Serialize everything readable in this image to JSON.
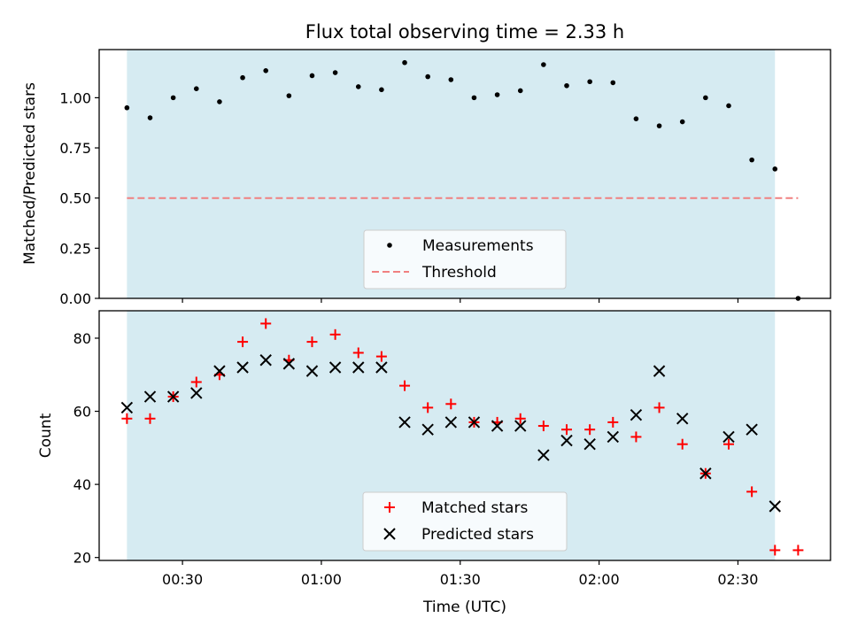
{
  "title": "Flux total observing time = 2.33 h",
  "xlabel": "Time (UTC)",
  "chart_data": [
    {
      "type": "scatter",
      "panel": "top",
      "ylabel": "Matched/Predicted stars",
      "ylim": [
        0,
        1.24
      ],
      "yticks": [
        0.0,
        0.25,
        0.5,
        0.75,
        1.0
      ],
      "ytick_labels": [
        "0.00",
        "0.25",
        "0.50",
        "0.75",
        "1.00"
      ],
      "xlim": [
        "00:12",
        "02:50"
      ],
      "xticks": [
        "00:30",
        "01:00",
        "01:30",
        "02:00",
        "02:30"
      ],
      "observing_window": [
        "00:18",
        "02:38"
      ],
      "grid": false,
      "legend_position": "lower center",
      "series": [
        {
          "name": "Measurements",
          "marker": "dot",
          "color": "#000000",
          "x": [
            "00:18",
            "00:23",
            "00:28",
            "00:33",
            "00:38",
            "00:43",
            "00:48",
            "00:53",
            "00:58",
            "01:03",
            "01:08",
            "01:13",
            "01:18",
            "01:23",
            "01:28",
            "01:33",
            "01:38",
            "01:43",
            "01:48",
            "01:53",
            "01:58",
            "02:03",
            "02:08",
            "02:13",
            "02:18",
            "02:23",
            "02:28",
            "02:33",
            "02:38",
            "02:43"
          ],
          "y": [
            0.95,
            0.9,
            1.0,
            1.045,
            0.98,
            1.1,
            1.135,
            1.01,
            1.11,
            1.125,
            1.055,
            1.04,
            1.175,
            1.105,
            1.09,
            1.0,
            1.015,
            1.035,
            1.165,
            1.06,
            1.08,
            1.075,
            0.895,
            0.86,
            0.88,
            1.0,
            0.96,
            0.69,
            0.645,
            0.0
          ]
        },
        {
          "name": "Threshold",
          "line": "dashed",
          "color": "#f08080",
          "x": [
            "00:18",
            "02:43"
          ],
          "y": [
            0.5,
            0.5
          ]
        }
      ]
    },
    {
      "type": "scatter",
      "panel": "bottom",
      "ylabel": "Count",
      "ylim": [
        19.2,
        87.5
      ],
      "yticks": [
        20,
        40,
        60,
        80
      ],
      "ytick_labels": [
        "20",
        "40",
        "60",
        "80"
      ],
      "xlim": [
        "00:12",
        "02:50"
      ],
      "xticks": [
        "00:30",
        "01:00",
        "01:30",
        "02:00",
        "02:30"
      ],
      "observing_window": [
        "00:18",
        "02:38"
      ],
      "grid": false,
      "legend_position": "lower center",
      "series": [
        {
          "name": "Matched stars",
          "marker": "plus",
          "color": "#ff0000",
          "x": [
            "00:18",
            "00:23",
            "00:28",
            "00:33",
            "00:38",
            "00:43",
            "00:48",
            "00:53",
            "00:58",
            "01:03",
            "01:08",
            "01:13",
            "01:18",
            "01:23",
            "01:28",
            "01:33",
            "01:38",
            "01:43",
            "01:48",
            "01:53",
            "01:58",
            "02:03",
            "02:08",
            "02:13",
            "02:18",
            "02:23",
            "02:28",
            "02:33",
            "02:38",
            "02:43"
          ],
          "y": [
            58,
            58,
            64,
            68,
            70,
            79,
            84,
            74,
            79,
            81,
            76,
            75,
            67,
            61,
            62,
            57,
            57,
            58,
            56,
            55,
            55,
            57,
            53,
            61,
            51,
            43,
            51,
            38,
            22,
            22
          ]
        },
        {
          "name": "Predicted stars",
          "marker": "x",
          "color": "#000000",
          "x": [
            "00:18",
            "00:23",
            "00:28",
            "00:33",
            "00:38",
            "00:43",
            "00:48",
            "00:53",
            "00:58",
            "01:03",
            "01:08",
            "01:13",
            "01:18",
            "01:23",
            "01:28",
            "01:33",
            "01:38",
            "01:43",
            "01:48",
            "01:53",
            "01:58",
            "02:03",
            "02:08",
            "02:13",
            "02:18",
            "02:23",
            "02:28",
            "02:33",
            "02:38"
          ],
          "y": [
            61,
            64,
            64,
            65,
            71,
            72,
            74,
            73,
            71,
            72,
            72,
            72,
            57,
            55,
            57,
            57,
            56,
            56,
            48,
            52,
            51,
            53,
            59,
            71,
            58,
            43,
            53,
            55,
            34
          ]
        }
      ]
    }
  ],
  "colors": {
    "observing_window_fill": "#add8e6",
    "observing_window_opacity": 0.5,
    "axes_edge": "#000000",
    "legend_edge": "#cccccc"
  }
}
